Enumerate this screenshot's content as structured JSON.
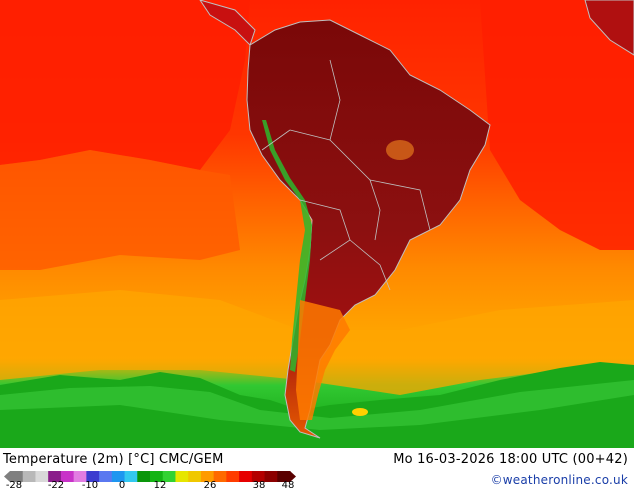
{
  "map": {
    "region": "South America",
    "variable": "Temperature (2m)",
    "unit": "°C",
    "model": "CMC/GEM"
  },
  "footer": {
    "title": "Temperature (2m) [°C] CMC/GEM",
    "valid_time": "Mo 16-03-2026 18:00 UTC (00+42)",
    "credit": "©weatheronline.co.uk"
  },
  "legend": {
    "tick_labels": [
      "-28",
      "-22",
      "-10",
      "0",
      "12",
      "26",
      "38",
      "48"
    ],
    "colors": [
      "#7f7f7f",
      "#b8b8b8",
      "#d9d9d9",
      "#8a1d8a",
      "#c832c8",
      "#e27ce2",
      "#3c3ccf",
      "#5a78f0",
      "#1e96f0",
      "#33c8f0",
      "#0a960a",
      "#14b414",
      "#32d232",
      "#e6e600",
      "#f0c800",
      "#ff9b00",
      "#ff6a00",
      "#ff3c00",
      "#e60000",
      "#b40000",
      "#8c0000",
      "#5a0000"
    ]
  },
  "colors": {
    "ocean_warm": "#ff2a00",
    "ocean_mid": "#ff7d00",
    "ocean_cool": "#ffa500",
    "polar_green": "#14aa14",
    "land_hot": "#8c0a0a",
    "coast_line": "#bfbfbf"
  }
}
